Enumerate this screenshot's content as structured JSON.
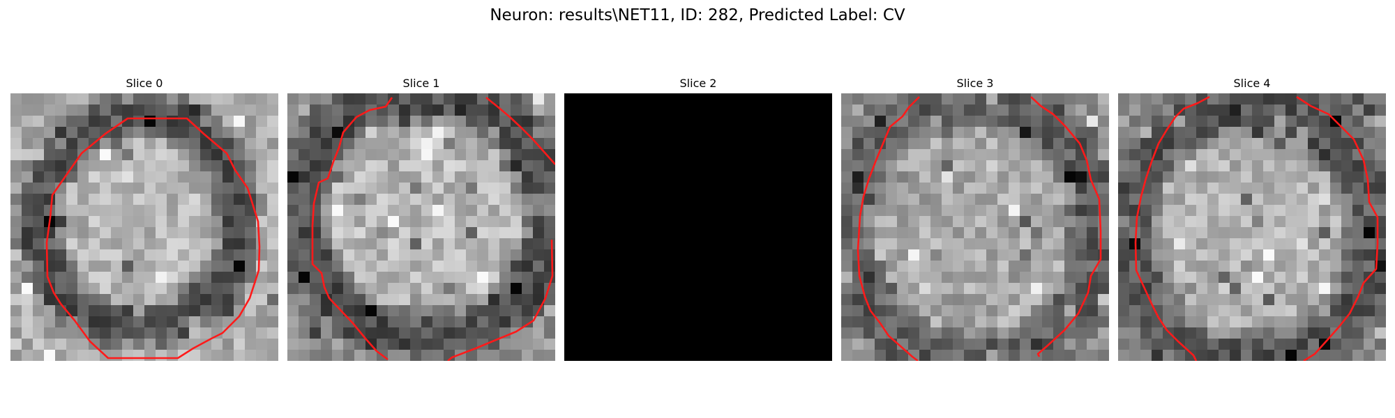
{
  "figure": {
    "title": "Neuron: results\\NET11, ID: 282, Predicted Label: CV"
  },
  "colors": {
    "contour": "#ff1a1a",
    "empty_slice": "#000000",
    "background": "#ffffff"
  },
  "slices": [
    {
      "title": "Slice 0",
      "empty": false
    },
    {
      "title": "Slice 1",
      "empty": false
    },
    {
      "title": "Slice 2",
      "empty": true
    },
    {
      "title": "Slice 3",
      "empty": false
    },
    {
      "title": "Slice 4",
      "empty": false
    }
  ]
}
